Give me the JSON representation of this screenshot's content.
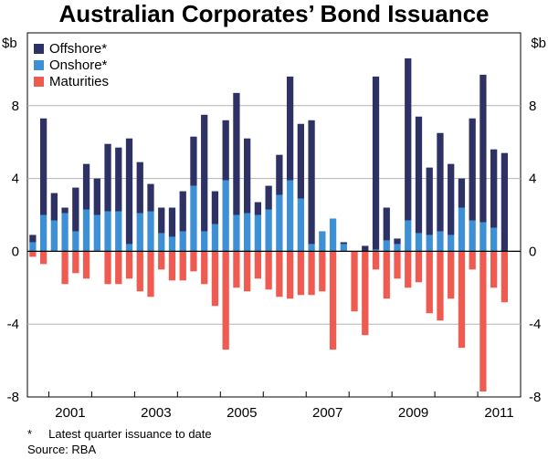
{
  "chart_data": {
    "type": "bar",
    "stacked": true,
    "title": "Australian Corporates’ Bond Issuance",
    "ylabel_left": "$b",
    "ylabel_right": "$b",
    "ylim": [
      -8,
      12
    ],
    "yticks": [
      -8,
      -4,
      0,
      4,
      8
    ],
    "x_tick_labels": [
      "2001",
      "2003",
      "2005",
      "2007",
      "2009",
      "2011"
    ],
    "x_tick_label_quarter_index": [
      3.5,
      11.5,
      19.5,
      27.5,
      35.5,
      43.5
    ],
    "x_year_boundaries": [
      "2001",
      "2002",
      "2003",
      "2004",
      "2005",
      "2006",
      "2007",
      "2008",
      "2009",
      "2010",
      "2011"
    ],
    "x_start": "2000 Q3",
    "legend_position": "top-left",
    "series": [
      {
        "name": "Offshore*",
        "color": "#2e3163",
        "values": [
          0.4,
          5.3,
          1.5,
          0.3,
          2.4,
          2.5,
          2.0,
          3.7,
          3.5,
          5.8,
          2.8,
          1.5,
          1.4,
          1.6,
          2.2,
          2.7,
          6.4,
          1.8,
          3.3,
          6.7,
          4.1,
          0.7,
          1.3,
          2.2,
          5.7,
          4.1,
          6.8,
          0.0,
          0.0,
          0.1,
          0.0,
          0.3,
          9.5,
          1.8,
          0.3,
          8.9,
          6.4,
          3.7,
          5.4,
          3.9,
          1.6,
          5.6,
          8.1,
          4.3,
          5.4,
          0.0
        ]
      },
      {
        "name": "Onshore*",
        "color": "#3d8fd6",
        "values": [
          0.5,
          2.0,
          1.7,
          2.1,
          1.1,
          2.3,
          2.0,
          2.2,
          2.2,
          0.4,
          2.1,
          2.2,
          1.0,
          0.8,
          1.1,
          3.6,
          1.1,
          1.5,
          3.9,
          2.0,
          2.1,
          2.0,
          2.3,
          3.1,
          3.9,
          2.9,
          0.4,
          1.1,
          1.8,
          0.4,
          0.0,
          0.0,
          0.1,
          0.6,
          0.4,
          1.7,
          1.0,
          0.9,
          1.1,
          0.9,
          2.4,
          1.7,
          1.6,
          1.3,
          0.0,
          0.0
        ]
      },
      {
        "name": "Maturities",
        "color": "#ef5a51",
        "values": [
          -0.3,
          -0.7,
          0.0,
          -1.8,
          -1.2,
          -1.5,
          0.0,
          -1.8,
          -1.8,
          -1.5,
          -2.2,
          -2.5,
          -1.0,
          -1.6,
          -1.6,
          -1.1,
          -1.8,
          -3.0,
          -5.4,
          -2.0,
          -2.2,
          -1.5,
          -2.1,
          -2.5,
          -2.6,
          -2.4,
          -2.4,
          -2.2,
          -5.4,
          -0.0,
          -3.3,
          -4.6,
          -1.0,
          -2.6,
          -1.5,
          -2.0,
          -1.7,
          -3.4,
          -3.8,
          -2.6,
          -5.3,
          -1.0,
          -7.7,
          -2.0,
          -2.8,
          0.0
        ]
      }
    ]
  },
  "footnote": "*     Latest quarter issuance to date",
  "source": "Source: RBA"
}
